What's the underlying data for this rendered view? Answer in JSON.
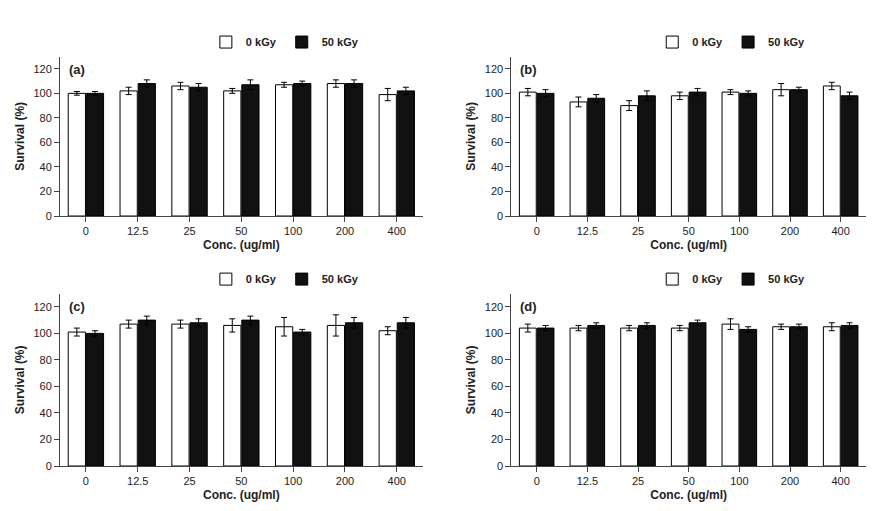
{
  "chart_data": [
    {
      "type": "bar",
      "title": "(a)",
      "categories": [
        "0",
        "12.5",
        "25",
        "50",
        "100",
        "200",
        "400"
      ],
      "xlabel": "Conc. (ug/ml)",
      "ylabel": "Survival (%)",
      "series": [
        {
          "name": "0 kGy",
          "color": "#ffffff",
          "values": [
            100,
            102,
            106,
            102,
            107,
            108,
            99
          ],
          "errors": [
            1.5,
            3,
            3,
            2,
            2,
            3,
            5
          ]
        },
        {
          "name": "50 kGy",
          "color": "#111111",
          "values": [
            100,
            108,
            105,
            107,
            108,
            108,
            102
          ],
          "errors": [
            1.5,
            3,
            3,
            4,
            2,
            3,
            3
          ]
        }
      ],
      "ylim": [
        0,
        130
      ],
      "yticks": [
        0,
        20,
        40,
        60,
        80,
        100,
        120
      ],
      "grid": false,
      "legend": "top"
    },
    {
      "type": "bar",
      "title": "(b)",
      "categories": [
        "0",
        "12.5",
        "25",
        "50",
        "100",
        "200",
        "400"
      ],
      "xlabel": "Conc. (ug/ml)",
      "ylabel": "Survival (%)",
      "series": [
        {
          "name": "0 kGy",
          "color": "#ffffff",
          "values": [
            101,
            93,
            90,
            98,
            101,
            103,
            106
          ],
          "errors": [
            3,
            4,
            4,
            3,
            2,
            5,
            3
          ]
        },
        {
          "name": "50 kGy",
          "color": "#111111",
          "values": [
            100,
            96,
            98,
            101,
            100,
            103,
            98
          ],
          "errors": [
            3,
            3,
            4,
            3,
            2,
            2,
            3
          ]
        }
      ],
      "ylim": [
        0,
        130
      ],
      "yticks": [
        0,
        20,
        40,
        60,
        80,
        100,
        120
      ],
      "grid": false,
      "legend": "top"
    },
    {
      "type": "bar",
      "title": "(c)",
      "categories": [
        "0",
        "12.5",
        "25",
        "50",
        "100",
        "200",
        "400"
      ],
      "xlabel": "Conc. (ug/ml)",
      "ylabel": "Survival (%)",
      "series": [
        {
          "name": "0 kGy",
          "color": "#ffffff",
          "values": [
            101,
            107,
            107,
            106,
            105,
            106,
            102
          ],
          "errors": [
            3,
            3,
            3,
            5,
            7,
            8,
            3
          ]
        },
        {
          "name": "50 kGy",
          "color": "#111111",
          "values": [
            100,
            110,
            108,
            110,
            101,
            108,
            108
          ],
          "errors": [
            2,
            3,
            3,
            3,
            2,
            4,
            4
          ]
        }
      ],
      "ylim": [
        0,
        130
      ],
      "yticks": [
        0,
        20,
        40,
        60,
        80,
        100,
        120
      ],
      "grid": false,
      "legend": "top"
    },
    {
      "type": "bar",
      "title": "(d)",
      "categories": [
        "0",
        "12.5",
        "25",
        "50",
        "100",
        "200",
        "400"
      ],
      "xlabel": "Conc. (ug/ml)",
      "ylabel": "Survival (%)",
      "series": [
        {
          "name": "0 kGy",
          "color": "#ffffff",
          "values": [
            104,
            104,
            104,
            104,
            107,
            105,
            105
          ],
          "errors": [
            3,
            2,
            2,
            2,
            4,
            2,
            3
          ]
        },
        {
          "name": "50 kGy",
          "color": "#111111",
          "values": [
            104,
            106,
            106,
            108,
            103,
            105,
            106
          ],
          "errors": [
            2,
            2,
            2,
            2,
            2,
            2,
            2
          ]
        }
      ],
      "ylim": [
        0,
        130
      ],
      "yticks": [
        0,
        20,
        40,
        60,
        80,
        100,
        120
      ],
      "grid": false,
      "legend": "top"
    }
  ]
}
